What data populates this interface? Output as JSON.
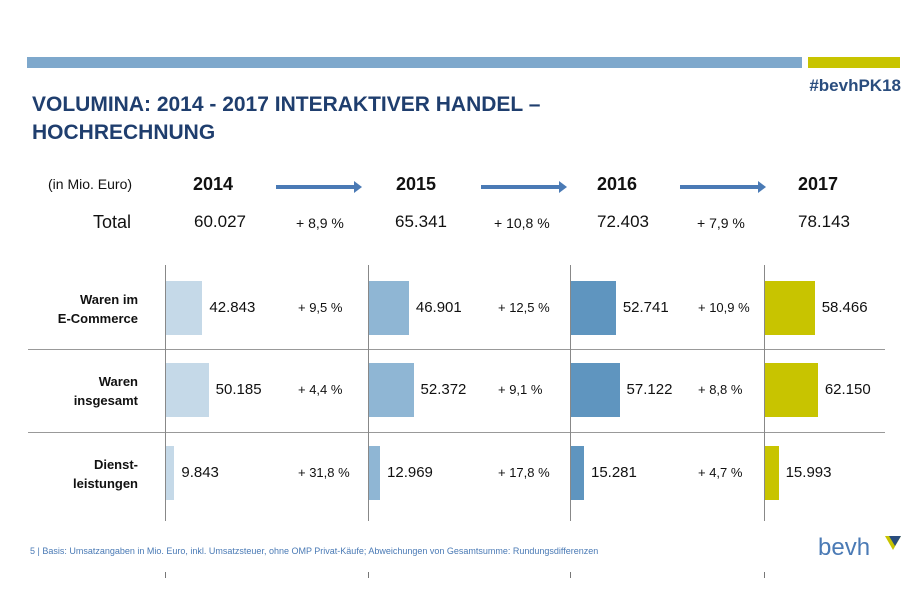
{
  "header": {
    "hashtag": "#bevhPK18",
    "title_line1": "VOLUMINA: 2014 - 2017 INTERAKTIVER HANDEL –",
    "title_line2": "HOCHRECHNUNG"
  },
  "chart_data": {
    "type": "bar",
    "unit_label": "(in Mio. Euro)",
    "years": [
      "2014",
      "2015",
      "2016",
      "2017"
    ],
    "total": {
      "label": "Total",
      "values": [
        "60.027",
        "65.341",
        "72.403",
        "78.143"
      ],
      "growth": [
        "+ 8,9 %",
        "+ 10,8 %",
        "+ 7,9 %"
      ]
    },
    "categories": [
      {
        "label_line1": "Waren im",
        "label_line2": "E-Commerce",
        "values": [
          42.843,
          46.901,
          52.741,
          58.466
        ],
        "value_labels": [
          "42.843",
          "46.901",
          "52.741",
          "58.466"
        ],
        "growth": [
          "+ 9,5 %",
          "+ 12,5 %",
          "+ 10,9 %"
        ]
      },
      {
        "label_line1": "Waren",
        "label_line2": "insgesamt",
        "values": [
          50.185,
          52.372,
          57.122,
          62.15
        ],
        "value_labels": [
          "50.185",
          "52.372",
          "57.122",
          "62.150"
        ],
        "growth": [
          "+ 4,4 %",
          "+ 9,1 %",
          "+ 8,8 %"
        ]
      },
      {
        "label_line1": "Dienst-",
        "label_line2": "leistungen",
        "values": [
          9.843,
          12.969,
          15.281,
          15.993
        ],
        "value_labels": [
          "9.843",
          "12.969",
          "15.281",
          "15.993"
        ],
        "growth": [
          "+ 31,8 %",
          "+ 17,8 %",
          "+ 4,7 %"
        ]
      }
    ],
    "colors": [
      "#c5d9e8",
      "#8fb6d4",
      "#5f95bf",
      "#c8c400"
    ]
  },
  "footer": {
    "note": "5 | Basis: Umsatzangaben in Mio. Euro, inkl. Umsatzsteuer, ohne OMP Privat-Käufe; Abweichungen von Gesamtsumme: Rundungsdifferenzen",
    "logo_text": "bevh",
    "logo_icon": "bevh-logo-icon"
  }
}
